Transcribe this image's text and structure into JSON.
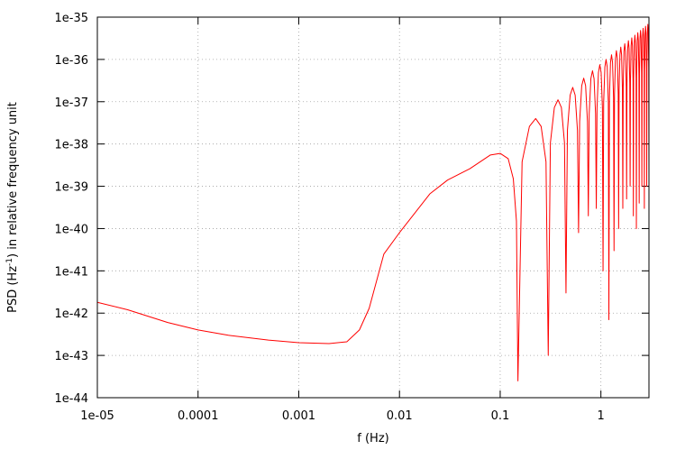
{
  "chart_data": {
    "type": "line",
    "x_label": "f (Hz)",
    "y_label": [
      "PSD (Hz",
      "-1",
      ") in relative frequency unit"
    ],
    "log_x": true,
    "log_y": true,
    "grid": true,
    "color": "#ff0000",
    "xlim": [
      1e-05,
      3
    ],
    "ylim": [
      1e-44,
      1e-35
    ],
    "xticks": [
      {
        "value": 1e-05,
        "label": "1e-05"
      },
      0.0001,
      0.001,
      0.01,
      0.1,
      1
    ],
    "yticks": [
      1e-44,
      1e-43,
      1e-42,
      1e-41,
      1e-40,
      1e-39,
      1e-38,
      1e-37,
      1e-36,
      1e-35
    ],
    "x": [
      1e-05,
      2e-05,
      5e-05,
      0.0001,
      0.0002,
      0.0005,
      0.001,
      0.002,
      0.003,
      0.004,
      0.005,
      0.007,
      0.01,
      0.02,
      0.03,
      0.05,
      0.08,
      0.1,
      0.12,
      0.135,
      0.145,
      0.15,
      0.165,
      0.195,
      0.225,
      0.255,
      0.285,
      0.3,
      0.315,
      0.345,
      0.375,
      0.405,
      0.435,
      0.45,
      0.465,
      0.495,
      0.525,
      0.555,
      0.585,
      0.6,
      0.615,
      0.645,
      0.675,
      0.705,
      0.735,
      0.75,
      0.765,
      0.795,
      0.825,
      0.855,
      0.885,
      0.9,
      0.915,
      0.945,
      0.975,
      1.005,
      1.035,
      1.05,
      1.065,
      1.095,
      1.125,
      1.155,
      1.185,
      1.2,
      1.215,
      1.245,
      1.275,
      1.305,
      1.335,
      1.35,
      1.365,
      1.395,
      1.425,
      1.455,
      1.485,
      1.5,
      1.515,
      1.545,
      1.575,
      1.605,
      1.635,
      1.65,
      1.665,
      1.695,
      1.725,
      1.755,
      1.785,
      1.8,
      1.815,
      1.845,
      1.875,
      1.905,
      1.935,
      1.95,
      1.965,
      1.995,
      2.025,
      2.055,
      2.085,
      2.1,
      2.115,
      2.145,
      2.175,
      2.205,
      2.235,
      2.25,
      2.265,
      2.295,
      2.325,
      2.355,
      2.385,
      2.4,
      2.415,
      2.445,
      2.475,
      2.505,
      2.535,
      2.55,
      2.565,
      2.595,
      2.625,
      2.655,
      2.685,
      2.7,
      2.715,
      2.745,
      2.775,
      2.805,
      2.835,
      2.85,
      2.865,
      2.895,
      2.925,
      2.955,
      2.985,
      3
    ],
    "values": [
      1.8e-42,
      1.2e-42,
      6e-43,
      4e-43,
      3e-43,
      2.3e-43,
      2e-43,
      1.9e-43,
      2.1e-43,
      4e-43,
      1.3e-42,
      2.5e-41,
      8e-41,
      6.6e-40,
      1.4e-39,
      2.6e-39,
      5.5e-39,
      6e-39,
      4.5e-39,
      1.5e-39,
      1.5e-40,
      2.5e-44,
      3.8e-39,
      2.6e-38,
      4e-38,
      2.6e-38,
      3.8e-39,
      1e-43,
      1.06e-38,
      7.3e-38,
      1.11e-37,
      7.3e-38,
      1.06e-38,
      3e-42,
      2.1e-38,
      1.43e-37,
      2.18e-37,
      1.43e-37,
      2.1e-38,
      8e-41,
      3.4e-38,
      2.4e-37,
      3.6e-37,
      2.4e-37,
      3.4e-38,
      2e-40,
      5.2e-38,
      3.5e-37,
      5.4e-37,
      3.5e-37,
      5.2e-38,
      3e-40,
      7.2e-38,
      4.9e-37,
      7.5e-37,
      4.9e-37,
      7.2e-38,
      1e-41,
      9.6e-38,
      6.6e-37,
      1e-36,
      6.6e-37,
      9.6e-38,
      7e-43,
      1.23e-37,
      8.4e-37,
      1.29e-36,
      8.4e-37,
      1.23e-37,
      3e-41,
      1.54e-37,
      1.05e-36,
      1.61e-36,
      1.05e-36,
      1.54e-37,
      1e-40,
      1.87e-37,
      1.28e-36,
      1.96e-36,
      1.28e-36,
      1.87e-37,
      3e-40,
      2.2e-37,
      1.54e-36,
      2.35e-36,
      1.54e-36,
      2.2e-37,
      5e-40,
      2.7e-37,
      1.82e-36,
      2.78e-36,
      1.82e-36,
      2.7e-37,
      1e-39,
      3.1e-37,
      2.1e-36,
      3.24e-36,
      2.1e-36,
      3.1e-37,
      2e-40,
      3.6e-37,
      2.4e-36,
      3.74e-36,
      2.4e-36,
      3.6e-37,
      1e-40,
      4.1e-37,
      2.8e-36,
      4.28e-36,
      2.8e-36,
      4.1e-37,
      4e-40,
      4.6e-37,
      3.2e-36,
      4.85e-36,
      3.2e-36,
      4.6e-37,
      1e-39,
      5.2e-37,
      3.6e-36,
      5.45e-36,
      3.6e-36,
      5.2e-37,
      3e-40,
      5.8e-37,
      4e-36,
      6.09e-36,
      4e-36,
      5.8e-37,
      1e-39,
      6.5e-37,
      4.4e-36,
      6.77e-36,
      4.4e-36,
      6.5e-37,
      2e-39
    ]
  }
}
